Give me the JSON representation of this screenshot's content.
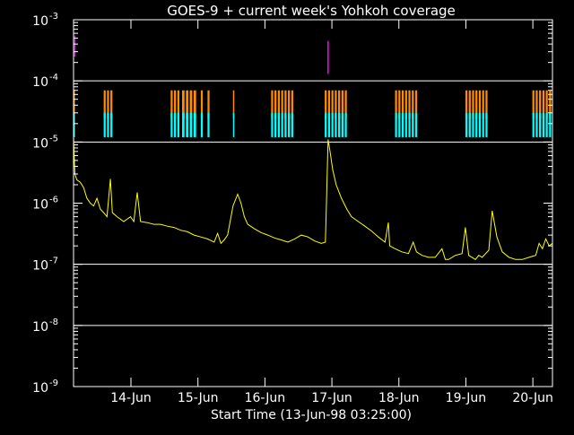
{
  "chart_data": {
    "type": "line",
    "title": "GOES-9 + current week's Yohkoh coverage",
    "xlabel": "Start Time (13-Jun-98 03:25:00)",
    "ylabel": "",
    "x_unit": "days since 13-Jun-98 03:25:00",
    "xlim": [
      0,
      7.15
    ],
    "ylim": [
      1e-09,
      0.001
    ],
    "y_scale": "log",
    "grid": {
      "horizontal_lines_at": [
        0.0001,
        1e-05,
        1e-07,
        1e-08
      ],
      "color": "#ffffff"
    },
    "x_ticks": [
      {
        "label": "14-Jun",
        "x": 0.857
      },
      {
        "label": "15-Jun",
        "x": 1.857
      },
      {
        "label": "16-Jun",
        "x": 2.857
      },
      {
        "label": "17-Jun",
        "x": 3.857
      },
      {
        "label": "18-Jun",
        "x": 4.857
      },
      {
        "label": "19-Jun",
        "x": 5.857
      },
      {
        "label": "20-Jun",
        "x": 6.857
      }
    ],
    "y_ticks": [
      {
        "base": "10",
        "exp": "-9",
        "value": 1e-09
      },
      {
        "base": "10",
        "exp": "-8",
        "value": 1e-08
      },
      {
        "base": "10",
        "exp": "-7",
        "value": 1e-07
      },
      {
        "base": "10",
        "exp": "-6",
        "value": 1e-06
      },
      {
        "base": "10",
        "exp": "-5",
        "value": 1e-05
      },
      {
        "base": "10",
        "exp": "-4",
        "value": 0.0001
      },
      {
        "base": "10",
        "exp": "-3",
        "value": 0.001
      }
    ],
    "series": [
      {
        "name": "",
        "color": "#ffff00",
        "points": [
          [
            0.0,
            1.2e-05
          ],
          [
            0.02,
            3e-06
          ],
          [
            0.05,
            2.4e-06
          ],
          [
            0.1,
            2.2e-06
          ],
          [
            0.15,
            1.8e-06
          ],
          [
            0.2,
            1.2e-06
          ],
          [
            0.25,
            1e-06
          ],
          [
            0.3,
            9e-07
          ],
          [
            0.35,
            1.2e-06
          ],
          [
            0.4,
            8e-07
          ],
          [
            0.45,
            7e-07
          ],
          [
            0.5,
            6e-07
          ],
          [
            0.55,
            2.5e-06
          ],
          [
            0.58,
            7e-07
          ],
          [
            0.65,
            6e-07
          ],
          [
            0.75,
            5e-07
          ],
          [
            0.85,
            6e-07
          ],
          [
            0.9,
            5e-07
          ],
          [
            0.95,
            1.5e-06
          ],
          [
            1.0,
            5e-07
          ],
          [
            1.1,
            4.8e-07
          ],
          [
            1.2,
            4.5e-07
          ],
          [
            1.3,
            4.5e-07
          ],
          [
            1.4,
            4.2e-07
          ],
          [
            1.5,
            4e-07
          ],
          [
            1.6,
            3.6e-07
          ],
          [
            1.7,
            3.4e-07
          ],
          [
            1.8,
            3e-07
          ],
          [
            1.9,
            2.8e-07
          ],
          [
            2.0,
            2.6e-07
          ],
          [
            2.1,
            2.3e-07
          ],
          [
            2.15,
            3.2e-07
          ],
          [
            2.2,
            2.2e-07
          ],
          [
            2.25,
            2.5e-07
          ],
          [
            2.3,
            3e-07
          ],
          [
            2.38,
            9e-07
          ],
          [
            2.45,
            1.4e-06
          ],
          [
            2.5,
            1e-06
          ],
          [
            2.55,
            6e-07
          ],
          [
            2.6,
            4.5e-07
          ],
          [
            2.7,
            3.8e-07
          ],
          [
            2.8,
            3.3e-07
          ],
          [
            2.9,
            3e-07
          ],
          [
            3.0,
            2.7e-07
          ],
          [
            3.1,
            2.5e-07
          ],
          [
            3.2,
            2.3e-07
          ],
          [
            3.3,
            2.6e-07
          ],
          [
            3.4,
            3e-07
          ],
          [
            3.5,
            2.8e-07
          ],
          [
            3.6,
            2.4e-07
          ],
          [
            3.7,
            2.2e-07
          ],
          [
            3.76,
            2.3e-07
          ],
          [
            3.78,
            1.5e-06
          ],
          [
            3.8,
            1.1e-05
          ],
          [
            3.83,
            7e-06
          ],
          [
            3.87,
            3.5e-06
          ],
          [
            3.92,
            2e-06
          ],
          [
            4.0,
            1.2e-06
          ],
          [
            4.08,
            8e-07
          ],
          [
            4.15,
            6e-07
          ],
          [
            4.25,
            5e-07
          ],
          [
            4.35,
            4.2e-07
          ],
          [
            4.45,
            3.5e-07
          ],
          [
            4.55,
            2.8e-07
          ],
          [
            4.65,
            2.3e-07
          ],
          [
            4.7,
            4.8e-07
          ],
          [
            4.72,
            2e-07
          ],
          [
            4.8,
            1.8e-07
          ],
          [
            4.9,
            1.6e-07
          ],
          [
            5.0,
            1.5e-07
          ],
          [
            5.07,
            2.3e-07
          ],
          [
            5.12,
            1.6e-07
          ],
          [
            5.2,
            1.4e-07
          ],
          [
            5.3,
            1.3e-07
          ],
          [
            5.4,
            1.3e-07
          ],
          [
            5.5,
            1.8e-07
          ],
          [
            5.55,
            1.2e-07
          ],
          [
            5.6,
            1.2e-07
          ],
          [
            5.7,
            1.4e-07
          ],
          [
            5.8,
            1.5e-07
          ],
          [
            5.85,
            4e-07
          ],
          [
            5.9,
            1.4e-07
          ],
          [
            6.0,
            1.2e-07
          ],
          [
            6.05,
            1.4e-07
          ],
          [
            6.1,
            1.3e-07
          ],
          [
            6.2,
            1.7e-07
          ],
          [
            6.25,
            7.5e-07
          ],
          [
            6.32,
            2.8e-07
          ],
          [
            6.4,
            1.6e-07
          ],
          [
            6.5,
            1.3e-07
          ],
          [
            6.6,
            1.2e-07
          ],
          [
            6.7,
            1.2e-07
          ],
          [
            6.8,
            1.3e-07
          ],
          [
            6.9,
            1.4e-07
          ],
          [
            6.95,
            2.2e-07
          ],
          [
            7.0,
            1.8e-07
          ],
          [
            7.05,
            2.6e-07
          ],
          [
            7.1,
            2e-07
          ],
          [
            7.15,
            2.2e-07
          ]
        ]
      }
    ],
    "spikes": [
      {
        "color": "#ff00ff",
        "x": 0.02,
        "y_from": 0.00025,
        "y_to": 0.00055
      },
      {
        "color": "#ff00ff",
        "x": 3.8,
        "y_from": 0.00013,
        "y_to": 0.00045
      }
    ],
    "coverage_bands": [
      {
        "color": "#ff8c00",
        "y_from": 2.4e-05,
        "y_to": 7e-05,
        "intervals": [
          [
            0.0,
            0.02
          ],
          [
            0.45,
            0.6
          ],
          [
            1.45,
            1.6
          ],
          [
            1.62,
            1.85
          ],
          [
            1.9,
            1.95
          ],
          [
            2.0,
            2.05
          ],
          [
            2.38,
            2.4
          ],
          [
            2.95,
            3.3
          ],
          [
            3.75,
            4.1
          ],
          [
            4.8,
            5.15
          ],
          [
            5.85,
            6.2
          ],
          [
            6.85,
            7.15
          ]
        ]
      },
      {
        "color": "#00ffff",
        "y_from": 1.2e-05,
        "y_to": 3e-05,
        "intervals": [
          [
            0.0,
            0.02
          ],
          [
            0.45,
            0.6
          ],
          [
            1.45,
            1.6
          ],
          [
            1.62,
            1.85
          ],
          [
            1.9,
            1.95
          ],
          [
            2.0,
            2.05
          ],
          [
            2.38,
            2.4
          ],
          [
            2.95,
            3.3
          ],
          [
            3.75,
            4.1
          ],
          [
            4.8,
            5.15
          ],
          [
            5.85,
            6.2
          ],
          [
            6.85,
            7.15
          ]
        ]
      }
    ]
  }
}
